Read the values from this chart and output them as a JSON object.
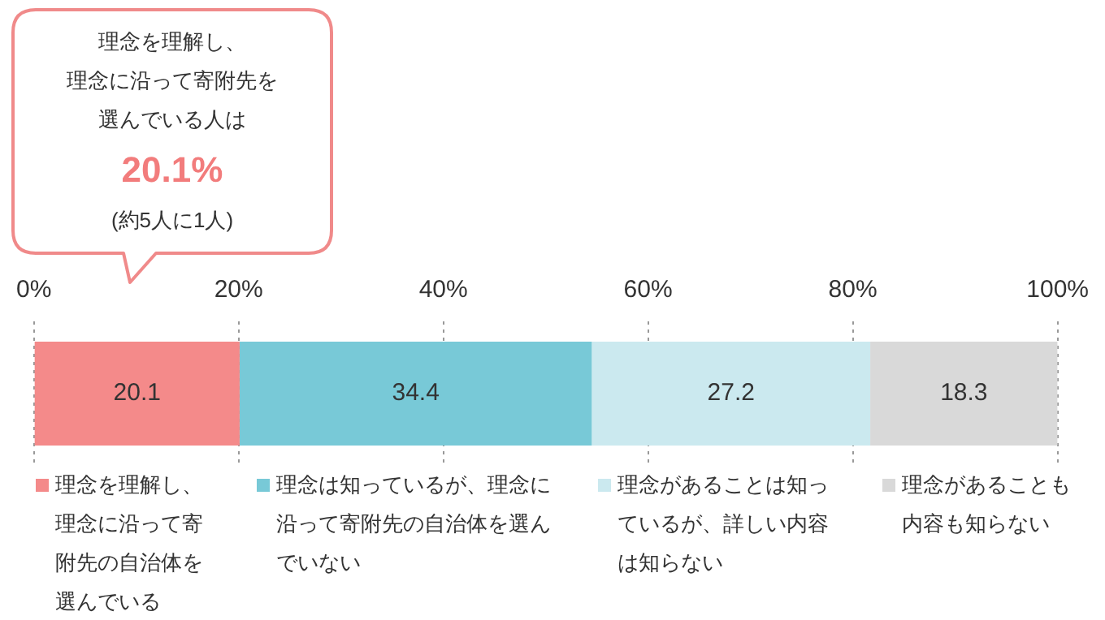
{
  "chart_data": {
    "type": "bar",
    "orientation": "horizontal",
    "stacked": true,
    "categories": [
      null
    ],
    "series": [
      {
        "name": "理念を理解し、理念に沿って寄附先の自治体を選んでいる",
        "color": "#f48a8a",
        "values": [
          20.1
        ]
      },
      {
        "name": "理念は知っているが、理念に沿って寄附先の自治体を選んでいない",
        "color": "#78c9d7",
        "values": [
          34.4
        ]
      },
      {
        "name": "理念があることは知っているが、詳しい内容は知らない",
        "color": "#cbe9ef",
        "values": [
          27.2
        ]
      },
      {
        "name": "理念があることも内容も知らない",
        "color": "#d9d9d9",
        "values": [
          18.3
        ]
      }
    ],
    "xlim": [
      0,
      100
    ],
    "xticks": [
      {
        "value": 0,
        "label": "0%"
      },
      {
        "value": 20,
        "label": "20%"
      },
      {
        "value": 40,
        "label": "40%"
      },
      {
        "value": 60,
        "label": "60%"
      },
      {
        "value": 80,
        "label": "80%"
      },
      {
        "value": 100,
        "label": "100%"
      }
    ],
    "grid": "x",
    "legend": "bottom",
    "data_labels": true,
    "annotations": [
      "理念を理解し、",
      "理念に沿って寄附先を",
      "選んでいる人は",
      "20.1%",
      "(約5人に1人)"
    ]
  }
}
